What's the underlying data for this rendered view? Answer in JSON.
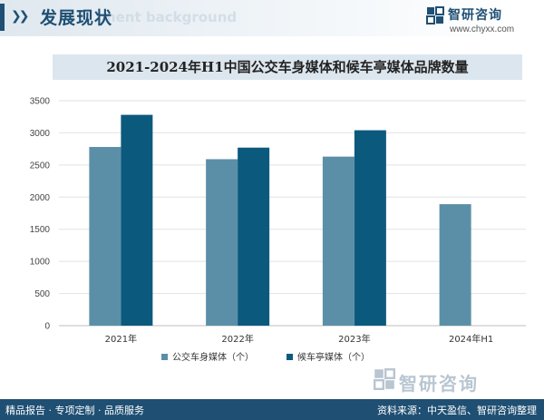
{
  "header": {
    "section_title": "发展现状",
    "section_subtitle": "ment background",
    "brand_name": "智研咨询",
    "brand_url": "www.chyxx.com"
  },
  "chart_data": {
    "type": "bar",
    "title": "2021-2024年H1中国公交车身媒体和候车亭媒体品牌数量",
    "categories": [
      "2021年",
      "2022年",
      "2023年",
      "2024年H1"
    ],
    "series": [
      {
        "name": "公交车身媒体（个）",
        "color": "#5b8fa8",
        "values": [
          2780,
          2590,
          2630,
          1890
        ]
      },
      {
        "name": "候车亭媒体（个）",
        "color": "#0b5a7e",
        "values": [
          3280,
          2770,
          3040,
          null
        ]
      }
    ],
    "ylim": [
      0,
      3500
    ],
    "yticks": [
      0,
      500,
      1000,
      1500,
      2000,
      2500,
      3000,
      3500
    ],
    "grid": true,
    "legend_position": "bottom"
  },
  "watermark": {
    "text": "智研咨询"
  },
  "footer": {
    "left": "精品报告 · 专项定制 · 品质服务",
    "right": "资料来源：中天盈信、智研咨询整理"
  }
}
